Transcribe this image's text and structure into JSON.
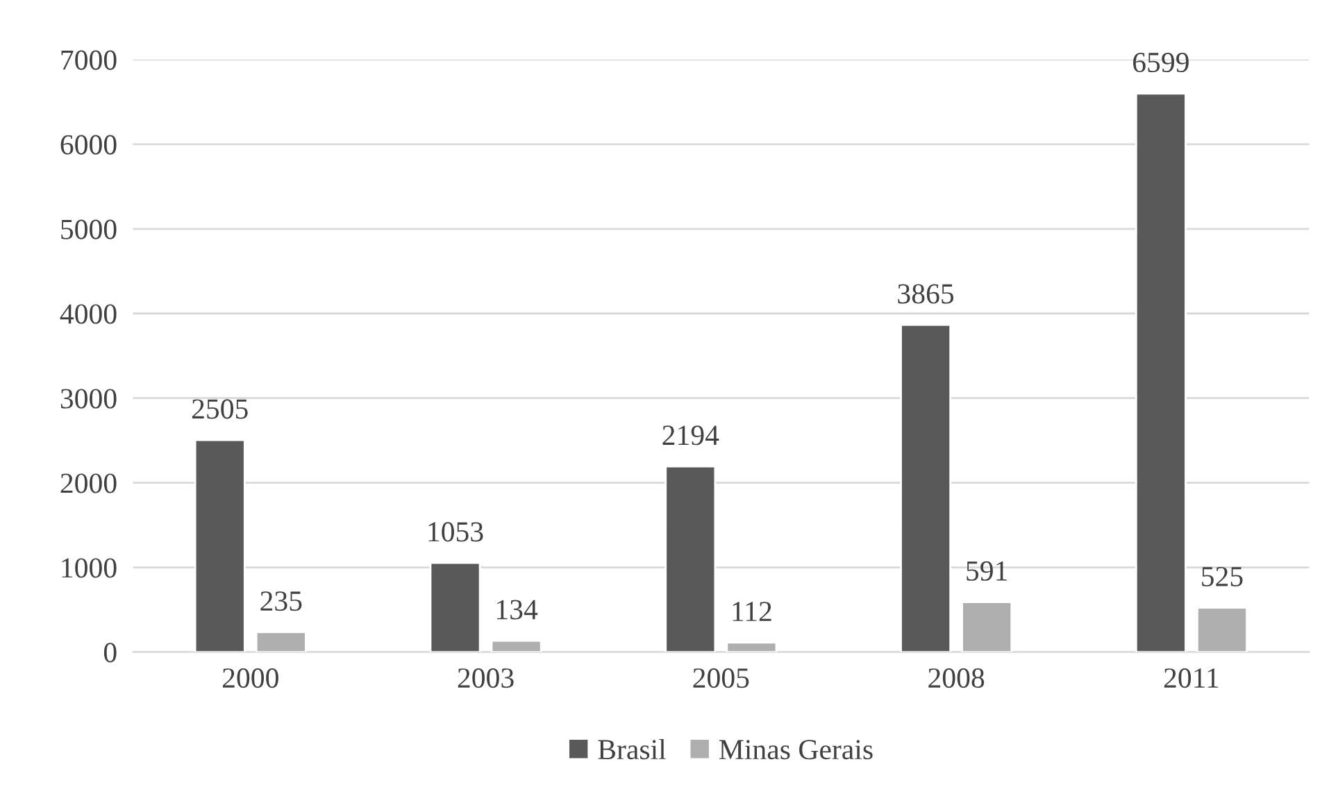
{
  "chart_data": {
    "type": "bar",
    "categories": [
      "2000",
      "2003",
      "2005",
      "2008",
      "2011"
    ],
    "series": [
      {
        "name": "Brasil",
        "color": "#595959",
        "values": [
          2505,
          1053,
          2194,
          3865,
          6599
        ]
      },
      {
        "name": "Minas Gerais",
        "color": "#afafaf",
        "values": [
          235,
          134,
          112,
          591,
          525
        ]
      }
    ],
    "ylim": [
      0,
      7000
    ],
    "yticks": [
      0,
      1000,
      2000,
      3000,
      4000,
      5000,
      6000,
      7000
    ],
    "grid": "y",
    "legend": "bottom",
    "data_labels": true
  }
}
